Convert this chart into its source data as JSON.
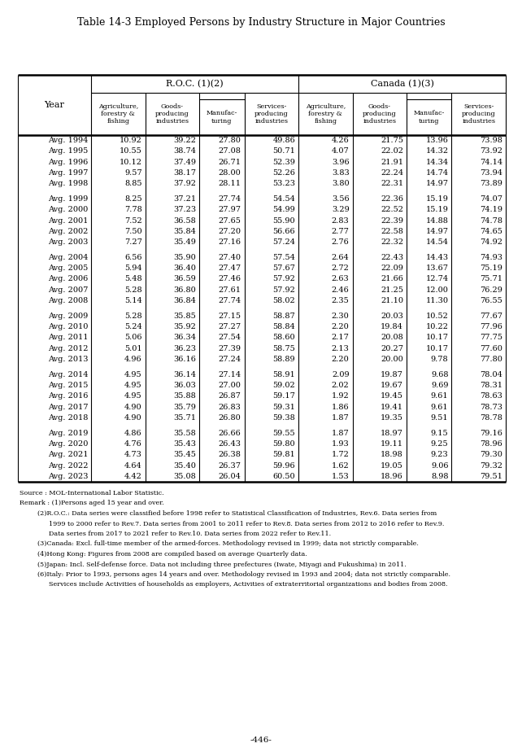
{
  "title": "Table 14-3 Employed Persons by Industry Structure in Major Countries",
  "col_groups": [
    "R.O.C. (1)(2)",
    "Canada (1)(3)"
  ],
  "col_headers_roc": [
    "Agriculture,\nforestry &\nfishing",
    "Goods-\nproducing\nindustries",
    "Manufac-\nturing",
    "Services-\nproducing\nindustries"
  ],
  "col_headers_can": [
    "Agriculture,\nforestry &\nfishing",
    "Goods-\nproducing\nindustries",
    "Manufac-\nturing",
    "Services-\nproducing\nindustries"
  ],
  "row_label": "Year",
  "rows": [
    [
      "Avg. 1994",
      10.92,
      39.22,
      27.8,
      49.86,
      4.26,
      21.75,
      13.96,
      73.98
    ],
    [
      "Avg. 1995",
      10.55,
      38.74,
      27.08,
      50.71,
      4.07,
      22.02,
      14.32,
      73.92
    ],
    [
      "Avg. 1996",
      10.12,
      37.49,
      26.71,
      52.39,
      3.96,
      21.91,
      14.34,
      74.14
    ],
    [
      "Avg. 1997",
      9.57,
      38.17,
      28.0,
      52.26,
      3.83,
      22.24,
      14.74,
      73.94
    ],
    [
      "Avg. 1998",
      8.85,
      37.92,
      28.11,
      53.23,
      3.8,
      22.31,
      14.97,
      73.89
    ],
    null,
    [
      "Avg. 1999",
      8.25,
      37.21,
      27.74,
      54.54,
      3.56,
      22.36,
      15.19,
      74.07
    ],
    [
      "Avg. 2000",
      7.78,
      37.23,
      27.97,
      54.99,
      3.29,
      22.52,
      15.19,
      74.19
    ],
    [
      "Avg. 2001",
      7.52,
      36.58,
      27.65,
      55.9,
      2.83,
      22.39,
      14.88,
      74.78
    ],
    [
      "Avg. 2002",
      7.5,
      35.84,
      27.2,
      56.66,
      2.77,
      22.58,
      14.97,
      74.65
    ],
    [
      "Avg. 2003",
      7.27,
      35.49,
      27.16,
      57.24,
      2.76,
      22.32,
      14.54,
      74.92
    ],
    null,
    [
      "Avg. 2004",
      6.56,
      35.9,
      27.4,
      57.54,
      2.64,
      22.43,
      14.43,
      74.93
    ],
    [
      "Avg. 2005",
      5.94,
      36.4,
      27.47,
      57.67,
      2.72,
      22.09,
      13.67,
      75.19
    ],
    [
      "Avg. 2006",
      5.48,
      36.59,
      27.46,
      57.92,
      2.63,
      21.66,
      12.74,
      75.71
    ],
    [
      "Avg. 2007",
      5.28,
      36.8,
      27.61,
      57.92,
      2.46,
      21.25,
      12.0,
      76.29
    ],
    [
      "Avg. 2008",
      5.14,
      36.84,
      27.74,
      58.02,
      2.35,
      21.1,
      11.3,
      76.55
    ],
    null,
    [
      "Avg. 2009",
      5.28,
      35.85,
      27.15,
      58.87,
      2.3,
      20.03,
      10.52,
      77.67
    ],
    [
      "Avg. 2010",
      5.24,
      35.92,
      27.27,
      58.84,
      2.2,
      19.84,
      10.22,
      77.96
    ],
    [
      "Avg. 2011",
      5.06,
      36.34,
      27.54,
      58.6,
      2.17,
      20.08,
      10.17,
      77.75
    ],
    [
      "Avg. 2012",
      5.01,
      36.23,
      27.39,
      58.75,
      2.13,
      20.27,
      10.17,
      77.6
    ],
    [
      "Avg. 2013",
      4.96,
      36.16,
      27.24,
      58.89,
      2.2,
      20.0,
      9.78,
      77.8
    ],
    null,
    [
      "Avg. 2014",
      4.95,
      36.14,
      27.14,
      58.91,
      2.09,
      19.87,
      9.68,
      78.04
    ],
    [
      "Avg. 2015",
      4.95,
      36.03,
      27.0,
      59.02,
      2.02,
      19.67,
      9.69,
      78.31
    ],
    [
      "Avg. 2016",
      4.95,
      35.88,
      26.87,
      59.17,
      1.92,
      19.45,
      9.61,
      78.63
    ],
    [
      "Avg. 2017",
      4.9,
      35.79,
      26.83,
      59.31,
      1.86,
      19.41,
      9.61,
      78.73
    ],
    [
      "Avg. 2018",
      4.9,
      35.71,
      26.8,
      59.38,
      1.87,
      19.35,
      9.51,
      78.78
    ],
    null,
    [
      "Avg. 2019",
      4.86,
      35.58,
      26.66,
      59.55,
      1.87,
      18.97,
      9.15,
      79.16
    ],
    [
      "Avg. 2020",
      4.76,
      35.43,
      26.43,
      59.8,
      1.93,
      19.11,
      9.25,
      78.96
    ],
    [
      "Avg. 2021",
      4.73,
      35.45,
      26.38,
      59.81,
      1.72,
      18.98,
      9.23,
      79.3
    ],
    [
      "Avg. 2022",
      4.64,
      35.4,
      26.37,
      59.96,
      1.62,
      19.05,
      9.06,
      79.32
    ],
    [
      "Avg. 2023",
      4.42,
      35.08,
      26.04,
      60.5,
      1.53,
      18.96,
      8.98,
      79.51
    ]
  ],
  "footnotes": [
    [
      "Source : MOL-International Labor Statistic.",
      0
    ],
    [
      "Remark : (1)Persons aged 15 year and over.",
      0
    ],
    [
      "(2)R.O.C.: Data series were classified before 1998 refer to Statistical Classification of Industries, Rev.6. Data series from",
      1
    ],
    [
      "1999 to 2000 refer to Rev.7. Data series from 2001 to 2011 refer to Rev.8. Data series from 2012 to 2016 refer to Rev.9.",
      2
    ],
    [
      "Data series from 2017 to 2021 refer to Rev.10. Data series from 2022 refer to Rev.11.",
      2
    ],
    [
      "(3)Canada: Excl. full-time member of the armed-forces. Methodology revised in 1999; data not strictly comparable.",
      1
    ],
    [
      "(4)Hong Kong: Figures from 2008 are compiled based on average Quarterly data.",
      1
    ],
    [
      "(5)Japan: Incl. Self-defense force. Data not including three prefectures (Iwate, Miyagi and Fukushima) in 2011.",
      1
    ],
    [
      "(6)Italy: Prior to 1993, persons ages 14 years and over. Methodology revised in 1993 and 2004; data not strictly comparable.",
      1
    ],
    [
      "Services include Activities of households as employers, Activities of extraterritorial organizations and bodies from 2008.",
      2
    ]
  ],
  "page_number": "-446-"
}
